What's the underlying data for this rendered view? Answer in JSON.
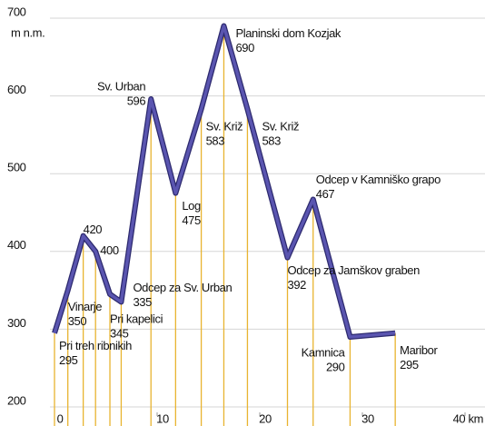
{
  "chart_data": {
    "type": "line",
    "y_unit": "m n.m.",
    "x": [
      0,
      1.3,
      2.8,
      4.0,
      5.4,
      6.5,
      9.4,
      11.8,
      14.3,
      16.5,
      18.8,
      22.7,
      25.2,
      28.8,
      33.2
    ],
    "series": [
      {
        "color": "#5a55b0",
        "labels": [
          "Pri treh ribnikih",
          "Vinarje",
          null,
          null,
          "Pri kapelici",
          "Odcep za Sv. Urban",
          "Sv. Urban",
          "Log",
          "Sv. Križ",
          "Planinski dom Kozjak",
          "Sv. Križ",
          "Odcep za Jamškov graben",
          "Odcep v Kamniško grapo",
          "Kamnica",
          "Maribor"
        ],
        "values": [
          295,
          350,
          420,
          400,
          345,
          335,
          596,
          475,
          583,
          690,
          583,
          392,
          467,
          290,
          295
        ]
      }
    ],
    "drop_color": "#e8b430",
    "xlim": [
      0,
      40
    ],
    "xticks": [
      0,
      10,
      20,
      30,
      {
        "value": 40,
        "label": "40 km"
      }
    ],
    "ylim": [
      200,
      700
    ],
    "yticks": [
      200,
      300,
      400,
      500,
      600,
      700
    ],
    "grid": true
  }
}
